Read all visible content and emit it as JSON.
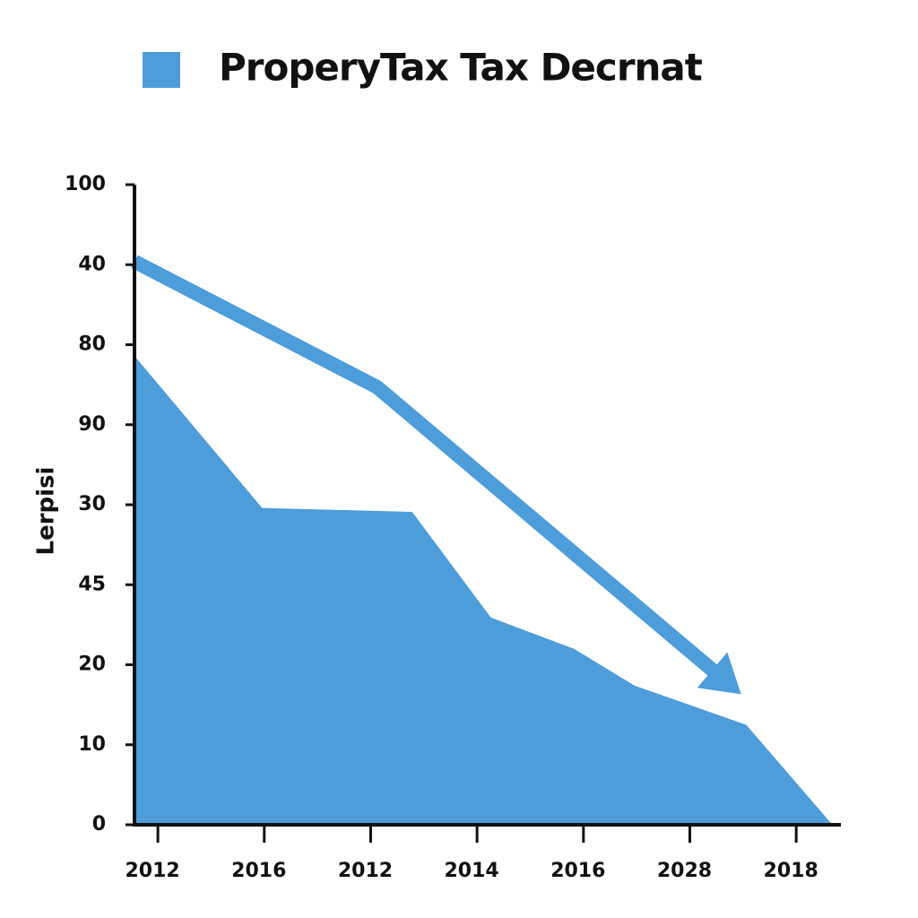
{
  "chart_data": {
    "type": "area",
    "y_label": "Lerpisi",
    "series": [
      {
        "name": "ProperyTax Tax Decrnat",
        "color": "#4d9ddb",
        "x": [
          -0.22,
          0.98,
          2.39,
          3.13,
          3.91,
          4.48,
          5.53,
          6.34
        ],
        "values": [
          5.86,
          3.96,
          3.91,
          2.59,
          2.2,
          1.74,
          1.25,
          0
        ]
      },
      {
        "color": "#4d9ddb",
        "style": "arrow",
        "x": [
          -0.22,
          2.06,
          5.34
        ],
        "values": [
          7.04,
          5.47,
          1.79
        ]
      }
    ],
    "xlim": [
      -0.22,
      6.42
    ],
    "xticks": [
      {
        "value": 0,
        "label": "2012"
      },
      {
        "value": 1,
        "label": "2016"
      },
      {
        "value": 2,
        "label": "2012"
      },
      {
        "value": 3,
        "label": "2014"
      },
      {
        "value": 4,
        "label": "2016"
      },
      {
        "value": 5,
        "label": "2028"
      },
      {
        "value": 6,
        "label": "2018"
      }
    ],
    "ylim": [
      0,
      8
    ],
    "yticks": [
      {
        "value": 8,
        "label": "100"
      },
      {
        "value": 7,
        "label": "40"
      },
      {
        "value": 6,
        "label": "80"
      },
      {
        "value": 5,
        "label": "90"
      },
      {
        "value": 4,
        "label": "30"
      },
      {
        "value": 3,
        "label": "45"
      },
      {
        "value": 2,
        "label": "20"
      },
      {
        "value": 1,
        "label": "10"
      },
      {
        "value": 0,
        "label": "0"
      }
    ]
  }
}
